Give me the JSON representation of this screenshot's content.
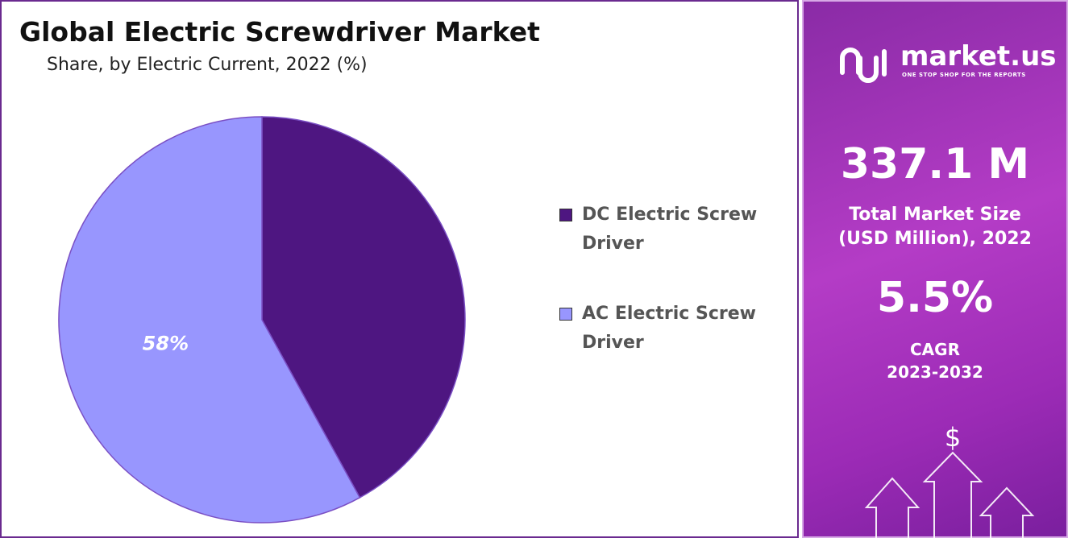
{
  "chart_data": {
    "type": "pie",
    "title": "Global Electric Screwdriver Market",
    "subtitle": "Share, by Electric Current, 2022 (%)",
    "categories": [
      "DC Electric Screw Driver",
      "AC Electric Screw Driver"
    ],
    "values": [
      42,
      58
    ],
    "value_labels": [
      null,
      "58%"
    ],
    "colors": [
      "#4e1681",
      "#9896fe"
    ],
    "legend": "right"
  },
  "panel": {
    "logo": "market.us",
    "tagline": "ONE STOP SHOP FOR THE REPORTS",
    "market_size": "337.1 M",
    "market_size_label": [
      "Total Market Size",
      "(USD Million), 2022"
    ],
    "cagr": "5.5%",
    "cagr_label": "CAGR",
    "cagr_period": "2023-2032"
  }
}
